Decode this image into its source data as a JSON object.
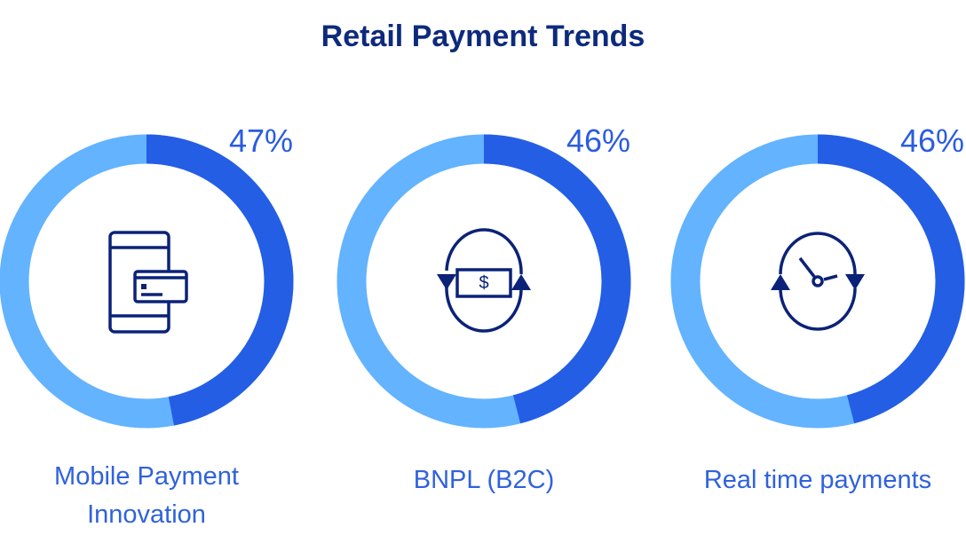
{
  "chart_data": {
    "type": "pie",
    "title": "Retail Payment Trends",
    "items": [
      {
        "label": "Mobile Payment Innovation",
        "value": 47,
        "display": "47%",
        "icon": "phone-card-icon"
      },
      {
        "label": "BNPL (B2C)",
        "value": 46,
        "display": "46%",
        "icon": "dollar-cycle-icon"
      },
      {
        "label": "Real time payments",
        "value": 46,
        "display": "46%",
        "icon": "clock-cycle-icon"
      }
    ],
    "colors": {
      "value": "#245ee5",
      "remainder": "#63b3ff",
      "icon": "#0b2278"
    }
  }
}
